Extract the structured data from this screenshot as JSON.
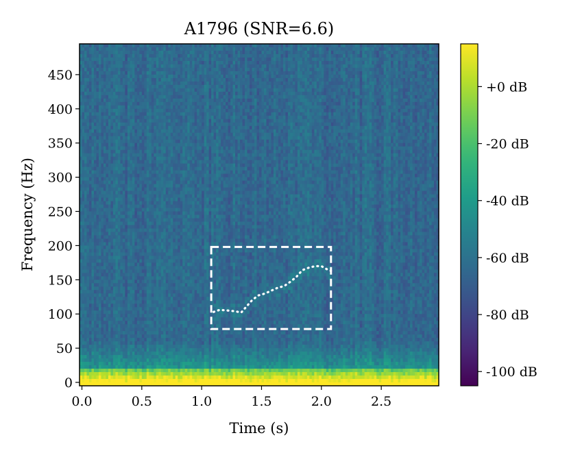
{
  "chart_data": {
    "type": "heatmap",
    "title": "A1796 (SNR=6.6)",
    "xlabel": "Time (s)",
    "ylabel": "Frequency (Hz)",
    "xlim": [
      -0.02,
      2.98
    ],
    "ylim": [
      -5,
      495
    ],
    "x_ticks": [
      0.0,
      0.5,
      1.0,
      1.5,
      2.0,
      2.5
    ],
    "x_tick_labels": [
      "0.0",
      "0.5",
      "1.0",
      "1.5",
      "2.0",
      "2.5"
    ],
    "y_ticks": [
      0,
      50,
      100,
      150,
      200,
      250,
      300,
      350,
      400,
      450
    ],
    "y_tick_labels": [
      "0",
      "50",
      "100",
      "150",
      "200",
      "250",
      "300",
      "350",
      "400",
      "450"
    ],
    "colormap": "viridis",
    "colorbar": {
      "vmin": -105,
      "vmax": 15,
      "ticks": [
        0,
        -20,
        -40,
        -60,
        -80,
        -100
      ],
      "tick_labels": [
        "+0 dB",
        "-20 dB",
        "-40 dB",
        "-60 dB",
        "-80 dB",
        "-100 dB"
      ]
    },
    "annotation_box": {
      "x": [
        1.08,
        2.08
      ],
      "y": [
        78,
        198
      ],
      "color": "#ffffff",
      "style": "dashed"
    },
    "annotation_track": {
      "color": "#ffffff",
      "style": "dotted",
      "points": [
        [
          1.1,
          103
        ],
        [
          1.15,
          106
        ],
        [
          1.22,
          105
        ],
        [
          1.28,
          104
        ],
        [
          1.33,
          102
        ],
        [
          1.38,
          112
        ],
        [
          1.42,
          120
        ],
        [
          1.47,
          127
        ],
        [
          1.53,
          130
        ],
        [
          1.58,
          134
        ],
        [
          1.63,
          138
        ],
        [
          1.69,
          141
        ],
        [
          1.74,
          147
        ],
        [
          1.79,
          154
        ],
        [
          1.84,
          164
        ],
        [
          1.9,
          168
        ],
        [
          1.95,
          170
        ],
        [
          2.0,
          170
        ],
        [
          2.05,
          165
        ],
        [
          2.08,
          163
        ]
      ]
    }
  }
}
